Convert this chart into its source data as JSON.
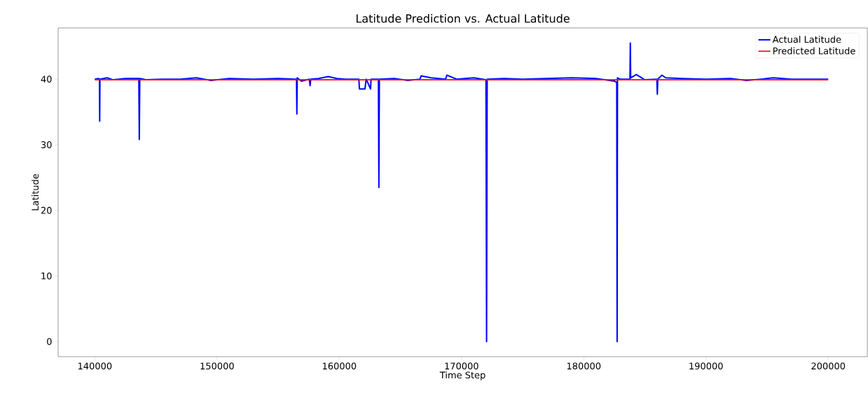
{
  "chart_data": {
    "type": "line",
    "title": "Latitude Prediction vs. Actual Latitude",
    "xlabel": "Time Step",
    "ylabel": "Latitude",
    "xlim": [
      137000,
      203200
    ],
    "ylim": [
      -2.3,
      47.8
    ],
    "xticks": [
      140000,
      150000,
      160000,
      170000,
      180000,
      190000,
      200000
    ],
    "yticks": [
      0,
      10,
      20,
      30,
      40
    ],
    "legend": "top right",
    "grid": false,
    "series": [
      {
        "name": "Actual Latitude",
        "color": "#0000ff",
        "x": [
          140000,
          140300,
          140380,
          140400,
          140420,
          141000,
          141500,
          142500,
          143600,
          143640,
          143680,
          144200,
          145500,
          147000,
          148300,
          149500,
          151000,
          153000,
          155000,
          156500,
          156530,
          156560,
          156900,
          157550,
          157610,
          157670,
          158300,
          159100,
          159800,
          160500,
          161600,
          161650,
          162100,
          162200,
          162560,
          162600,
          163200,
          163240,
          163280,
          164500,
          165600,
          166600,
          166700,
          167500,
          168700,
          168800,
          169600,
          171000,
          172000,
          172050,
          172100,
          173500,
          175000,
          177000,
          179000,
          181000,
          182100,
          182500,
          182700,
          182730,
          182760,
          183000,
          183780,
          183810,
          183840,
          184300,
          185000,
          185980,
          186020,
          186060,
          186400,
          186700,
          188000,
          190000,
          192000,
          193300,
          194500,
          195500,
          197000,
          198500,
          200000
        ],
        "values": [
          40.0,
          40.1,
          40.0,
          33.6,
          40.0,
          40.2,
          39.9,
          40.1,
          40.1,
          30.8,
          40.1,
          39.9,
          40.0,
          40.0,
          40.2,
          39.8,
          40.1,
          40.0,
          40.1,
          40.0,
          34.7,
          40.2,
          39.7,
          40.0,
          39.0,
          40.0,
          40.1,
          40.4,
          40.1,
          40.0,
          40.0,
          38.5,
          38.5,
          40.0,
          38.5,
          40.0,
          40.0,
          23.5,
          40.0,
          40.1,
          39.8,
          40.0,
          40.5,
          40.2,
          40.0,
          40.6,
          40.0,
          40.2,
          39.9,
          0,
          40.0,
          40.1,
          40.0,
          40.1,
          40.2,
          40.1,
          39.8,
          39.7,
          39.5,
          0,
          40.2,
          40.0,
          40.0,
          45.5,
          40.2,
          40.7,
          39.9,
          40.0,
          37.7,
          40.0,
          40.6,
          40.2,
          40.1,
          40.0,
          40.1,
          39.8,
          40.0,
          40.2,
          40.0,
          40.0,
          40.0
        ]
      },
      {
        "name": "Predicted Latitude",
        "color": "#ff0000",
        "x": [
          140000,
          170000,
          200000
        ],
        "values": [
          39.9,
          39.9,
          39.9
        ]
      }
    ]
  }
}
